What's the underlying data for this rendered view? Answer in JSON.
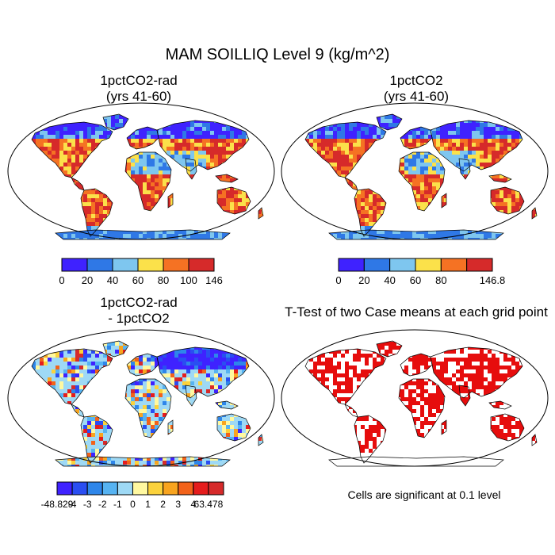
{
  "figure": {
    "title": "MAM SOILLIQ Level 9 (kg/m^2)"
  },
  "panels": [
    {
      "title_lines": [
        "1pctCO2-rad",
        "(yrs 41-60)"
      ]
    },
    {
      "title_lines": [
        "1pctCO2",
        "(yrs 41-60)"
      ]
    },
    {
      "title_lines": [
        "1pctCO2-rad",
        "- 1pctCO2"
      ]
    },
    {
      "title_lines": [
        "T-Test of two Case means at each grid point",
        ""
      ]
    }
  ],
  "colorbars": [
    {
      "colors": [
        "#3f22ff",
        "#2f78e6",
        "#7ec6ef",
        "#fbe14a",
        "#f57223",
        "#d62a2a"
      ],
      "labels": [
        "0",
        "20",
        "40",
        "60",
        "80",
        "100",
        "146"
      ]
    },
    {
      "colors": [
        "#3f22ff",
        "#2f78e6",
        "#7ec6ef",
        "#fbe14a",
        "#f57223",
        "#d62a2a"
      ],
      "labels": [
        "0",
        "20",
        "40",
        "60",
        "80",
        "",
        "146.8"
      ]
    },
    {
      "colors": [
        "#3f22ff",
        "#2a4ef2",
        "#2e86ea",
        "#56b3f2",
        "#9ed9f5",
        "#fff8a0",
        "#fbd23c",
        "#f8a41f",
        "#f2621a",
        "#e51c1c",
        "#d62a2a"
      ],
      "labels": [
        "-48.829",
        "-4",
        "-3",
        "-2",
        "-1",
        "0",
        "1",
        "2",
        "3",
        "4",
        "63.478"
      ]
    }
  ],
  "significance_note": "Cells are significant at 0.1 level"
}
